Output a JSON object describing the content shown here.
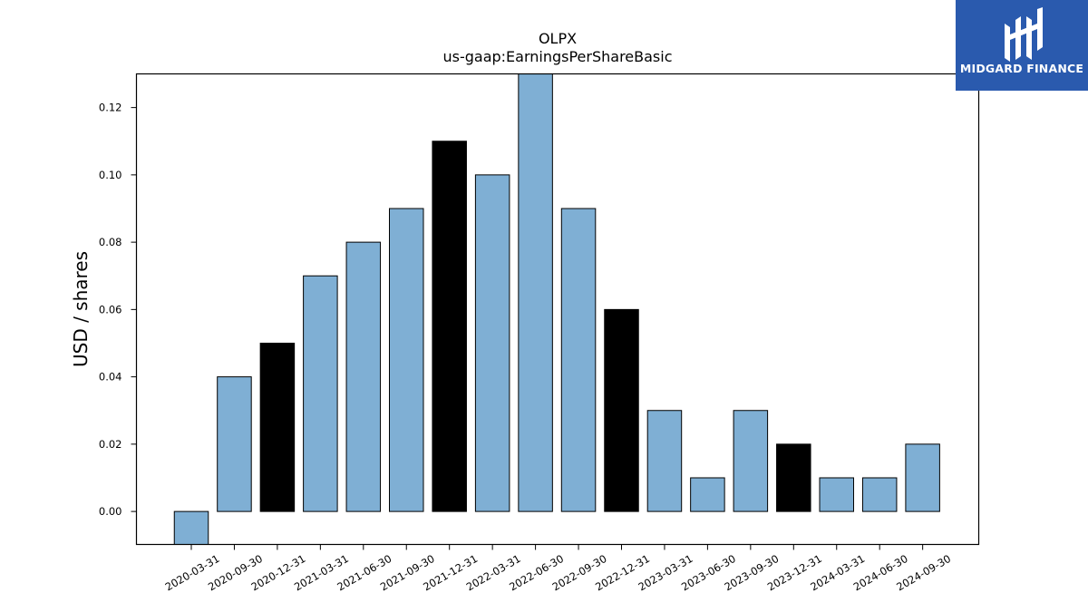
{
  "chart_data": {
    "type": "bar",
    "title": "OLPX",
    "subtitle": "us-gaap:EarningsPerShareBasic",
    "xlabel": "",
    "ylabel": "USD / shares",
    "ylim": [
      -0.0098,
      0.13
    ],
    "yticks": [
      0.0,
      0.02,
      0.04,
      0.06,
      0.08,
      0.1,
      0.12
    ],
    "ytick_labels": [
      "0.00",
      "0.02",
      "0.04",
      "0.06",
      "0.08",
      "0.10",
      "0.12"
    ],
    "categories": [
      "2020-03-31",
      "2020-09-30",
      "2020-12-31",
      "2021-03-31",
      "2021-06-30",
      "2021-09-30",
      "2021-12-31",
      "2022-03-31",
      "2022-06-30",
      "2022-09-30",
      "2022-12-31",
      "2023-03-31",
      "2023-06-30",
      "2023-09-30",
      "2023-12-31",
      "2024-03-31",
      "2024-06-30",
      "2024-09-30"
    ],
    "values": [
      -0.01,
      0.04,
      0.05,
      0.07,
      0.08,
      0.09,
      0.11,
      0.1,
      0.13,
      0.09,
      0.06,
      0.03,
      0.01,
      0.03,
      0.02,
      0.01,
      0.01,
      0.02
    ],
    "highlight": [
      false,
      false,
      true,
      false,
      false,
      false,
      true,
      false,
      false,
      false,
      true,
      false,
      false,
      false,
      true,
      false,
      false,
      false
    ],
    "colors": {
      "bar": "#7fafd4",
      "highlight": "#000000",
      "edge": "#000000"
    },
    "grid": false,
    "legend": "none"
  },
  "logo": {
    "text": "MIDGARD FINANCE",
    "color": "#2a5aae"
  }
}
